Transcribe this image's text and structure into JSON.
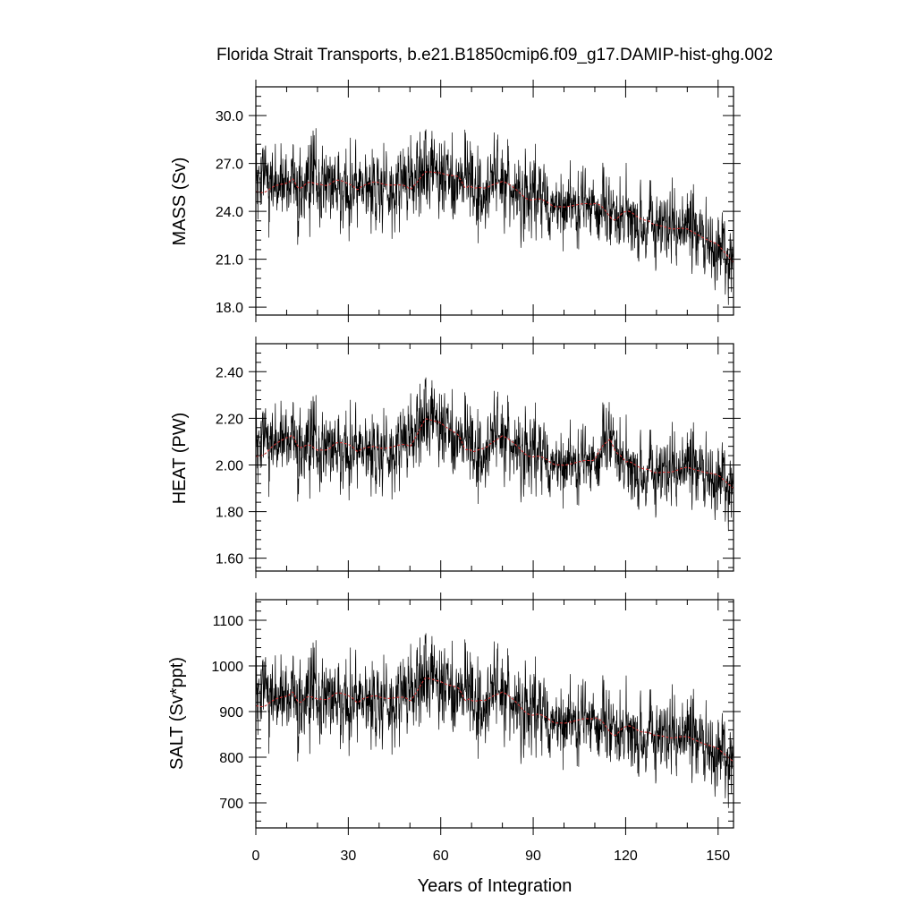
{
  "chart_data": [
    {
      "type": "line",
      "title": "Florida Strait Transports, b.e21.B1850cmip6.f09_g17.DAMIP-hist-ghg.002",
      "xlabel": "",
      "ylabel": "MASS (Sv)",
      "xlim": [
        0,
        155
      ],
      "ylim": [
        17.5,
        31.8
      ],
      "yticks": [
        18.0,
        21.0,
        24.0,
        27.0,
        30.0
      ],
      "ytick_labels": [
        "18.0",
        "21.0",
        "24.0",
        "27.0",
        "30.0"
      ],
      "ytick_minor": 0.6,
      "xticks": [
        0,
        30,
        60,
        90,
        120,
        150
      ],
      "xtick_minor": 10,
      "tick_labels_x": false,
      "monthly_resolution": 12,
      "series": [
        {
          "color": "#000000",
          "values_summary": "monthly",
          "anchor_years": [
            0,
            10,
            20,
            30,
            40,
            50,
            55,
            60,
            70,
            80,
            90,
            100,
            110,
            120,
            130,
            140,
            150,
            155
          ],
          "anchor_values": [
            25.3,
            25.8,
            25.5,
            25.6,
            25.6,
            25.7,
            26.5,
            26.4,
            25.4,
            25.8,
            24.8,
            24.3,
            24.6,
            23.8,
            23.2,
            22.9,
            21.8,
            20.8
          ],
          "noise": 1.5
        },
        {
          "color": "#cc3333",
          "values_summary": "running-mean",
          "anchor_years": [
            0,
            10,
            20,
            30,
            40,
            50,
            55,
            60,
            70,
            80,
            90,
            100,
            110,
            120,
            130,
            140,
            150,
            155
          ],
          "anchor_values": [
            25.3,
            25.8,
            25.5,
            25.6,
            25.6,
            25.7,
            26.5,
            26.4,
            25.4,
            25.8,
            24.8,
            24.3,
            24.6,
            23.8,
            23.2,
            22.9,
            21.8,
            20.8
          ]
        }
      ]
    },
    {
      "type": "line",
      "title": "",
      "xlabel": "",
      "ylabel": "HEAT (PW)",
      "xlim": [
        0,
        155
      ],
      "ylim": [
        1.545,
        2.52
      ],
      "yticks": [
        1.6,
        1.8,
        2.0,
        2.2,
        2.4
      ],
      "ytick_labels": [
        "1.60",
        "1.80",
        "2.00",
        "2.20",
        "2.40"
      ],
      "ytick_minor": 0.04,
      "xticks": [
        0,
        30,
        60,
        90,
        120,
        150
      ],
      "xtick_minor": 10,
      "tick_labels_x": false,
      "monthly_resolution": 12,
      "series": [
        {
          "color": "#000000",
          "values_summary": "monthly",
          "anchor_years": [
            0,
            10,
            20,
            30,
            40,
            50,
            55,
            60,
            70,
            80,
            90,
            100,
            110,
            115,
            120,
            130,
            140,
            150,
            155
          ],
          "anchor_values": [
            2.04,
            2.12,
            2.05,
            2.08,
            2.06,
            2.1,
            2.2,
            2.18,
            2.05,
            2.12,
            2.04,
            2.0,
            2.03,
            2.15,
            2.0,
            1.97,
            1.99,
            1.95,
            1.9
          ],
          "noise": 0.1
        },
        {
          "color": "#cc3333",
          "values_summary": "running-mean",
          "anchor_years": [
            0,
            10,
            20,
            30,
            40,
            50,
            55,
            60,
            70,
            80,
            90,
            100,
            110,
            115,
            120,
            130,
            140,
            150,
            155
          ],
          "anchor_values": [
            2.04,
            2.12,
            2.05,
            2.08,
            2.06,
            2.1,
            2.2,
            2.18,
            2.05,
            2.12,
            2.04,
            2.0,
            2.03,
            2.15,
            2.0,
            1.97,
            1.99,
            1.95,
            1.9
          ]
        }
      ]
    },
    {
      "type": "line",
      "title": "",
      "xlabel": "Years of Integration",
      "ylabel": "SALT (Sv*ppt)",
      "xlim": [
        0,
        155
      ],
      "ylim": [
        645,
        1145
      ],
      "yticks": [
        700,
        800,
        900,
        1000,
        1100
      ],
      "ytick_labels": [
        "700",
        "800",
        "900",
        "1000",
        "1100"
      ],
      "ytick_minor": 20,
      "xticks": [
        0,
        30,
        60,
        90,
        120,
        150
      ],
      "xtick_labels": [
        "0",
        "30",
        "60",
        "90",
        "120",
        "150"
      ],
      "xtick_minor": 10,
      "tick_labels_x": true,
      "monthly_resolution": 12,
      "series": [
        {
          "color": "#000000",
          "values_summary": "monthly",
          "anchor_years": [
            0,
            10,
            20,
            30,
            40,
            50,
            55,
            60,
            70,
            80,
            90,
            100,
            110,
            120,
            130,
            140,
            150,
            155
          ],
          "anchor_values": [
            915,
            935,
            920,
            930,
            925,
            935,
            975,
            965,
            920,
            940,
            895,
            875,
            890,
            860,
            850,
            845,
            815,
            790
          ],
          "noise": 55
        },
        {
          "color": "#cc3333",
          "values_summary": "running-mean",
          "anchor_years": [
            0,
            10,
            20,
            30,
            40,
            50,
            55,
            60,
            70,
            80,
            90,
            100,
            110,
            120,
            130,
            140,
            150,
            155
          ],
          "anchor_values": [
            915,
            935,
            920,
            930,
            925,
            935,
            975,
            965,
            920,
            940,
            895,
            875,
            890,
            860,
            850,
            845,
            815,
            790
          ]
        }
      ]
    }
  ]
}
